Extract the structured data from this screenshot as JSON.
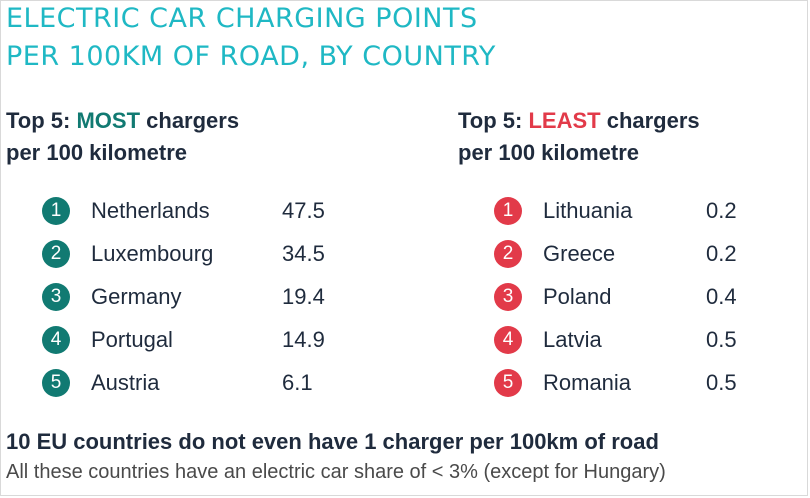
{
  "title_line1": "ELECTRIC CAR CHARGING POINTS",
  "title_line2": "PER 100KM OF ROAD, BY COUNTRY",
  "left_panel": {
    "prefix": "Top 5: ",
    "highlight": "MOST",
    "suffix": " chargers",
    "line2": "per 100 kilometre",
    "color": "#117a72"
  },
  "right_panel": {
    "prefix": "Top 5: ",
    "highlight": "LEAST",
    "suffix": " chargers",
    "line2": "per 100 kilometre",
    "color": "#e23a49"
  },
  "chart_data": {
    "type": "table",
    "title": "ELECTRIC CAR CHARGING POINTS PER 100KM OF ROAD, BY COUNTRY",
    "tables": [
      {
        "name": "Top 5: MOST chargers per 100 kilometre",
        "rows": [
          {
            "rank": "1",
            "country": "Netherlands",
            "value": "47.5"
          },
          {
            "rank": "2",
            "country": "Luxembourg",
            "value": "34.5"
          },
          {
            "rank": "3",
            "country": "Germany",
            "value": "19.4"
          },
          {
            "rank": "4",
            "country": "Portugal",
            "value": "14.9"
          },
          {
            "rank": "5",
            "country": "Austria",
            "value": "6.1"
          }
        ]
      },
      {
        "name": "Top 5: LEAST chargers per 100 kilometre",
        "rows": [
          {
            "rank": "1",
            "country": "Lithuania",
            "value": "0.2"
          },
          {
            "rank": "2",
            "country": "Greece",
            "value": "0.2"
          },
          {
            "rank": "3",
            "country": "Poland",
            "value": "0.4"
          },
          {
            "rank": "4",
            "country": "Latvia",
            "value": "0.5"
          },
          {
            "rank": "5",
            "country": "Romania",
            "value": "0.5"
          }
        ]
      }
    ]
  },
  "footer": {
    "bold": "10 EU countries do not even have 1 charger per 100km of road",
    "text": "All these countries have an electric car share of < 3% (except for Hungary)"
  }
}
